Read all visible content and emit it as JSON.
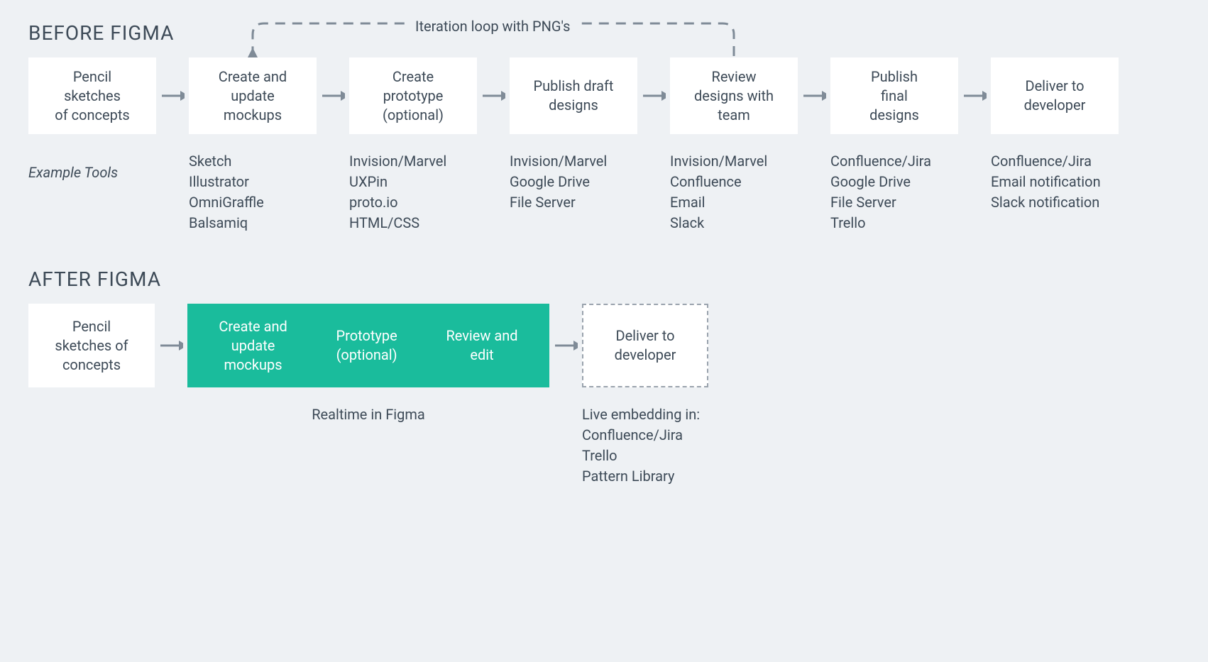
{
  "colors": {
    "background": "#eef1f4",
    "box_bg": "#ffffff",
    "text": "#3d4a57",
    "arrow": "#7f8b97",
    "figma_green": "#1abc9c",
    "figma_text": "#ffffff",
    "dashed_border": "#9aa3ad"
  },
  "typography": {
    "title_fontsize": 28,
    "body_fontsize": 20,
    "line_height": 1.35
  },
  "layout": {
    "before_box_width": 180,
    "before_box_height": 108,
    "arrow_width": 46,
    "after_box1_width": 178,
    "after_figma_width": 510,
    "after_box_height": 118,
    "after_dashed_width": 178
  },
  "before": {
    "title": "BEFORE FIGMA",
    "loop_label": "Iteration loop with PNG's",
    "loop_from_step_index": 4,
    "loop_to_step_index": 1,
    "steps": [
      {
        "label": "Pencil\nsketches\nof concepts",
        "tools": ""
      },
      {
        "label": "Create and\nupdate\nmockups",
        "tools": "Sketch\nIllustrator\nOmniGraffle\nBalsamiq"
      },
      {
        "label": "Create\nprototype\n(optional)",
        "tools": "Invision/Marvel\nUXPin\nproto.io\nHTML/CSS"
      },
      {
        "label": "Publish draft\ndesigns",
        "tools": "Invision/Marvel\nGoogle Drive\nFile Server"
      },
      {
        "label": "Review\ndesigns with\nteam",
        "tools": "Invision/Marvel\nConfluence\nEmail\nSlack"
      },
      {
        "label": "Publish\nfinal\ndesigns",
        "tools": "Confluence/Jira\nGoogle Drive\nFile Server\nTrello"
      },
      {
        "label": "Deliver to\ndeveloper",
        "tools": "Confluence/Jira\nEmail notification\nSlack notification"
      }
    ],
    "tools_label": "Example Tools"
  },
  "after": {
    "title": "AFTER FIGMA",
    "step1": {
      "label": "Pencil\nsketches of\nconcepts",
      "caption": ""
    },
    "figma_steps": [
      "Create and\nupdate\nmockups",
      "Prototype\n(optional)",
      "Review and\nedit"
    ],
    "figma_caption": "Realtime in Figma",
    "deliver": {
      "label": "Deliver to\ndeveloper",
      "caption": "Live embedding in:\nConfluence/Jira\nTrello\nPattern Library"
    }
  }
}
